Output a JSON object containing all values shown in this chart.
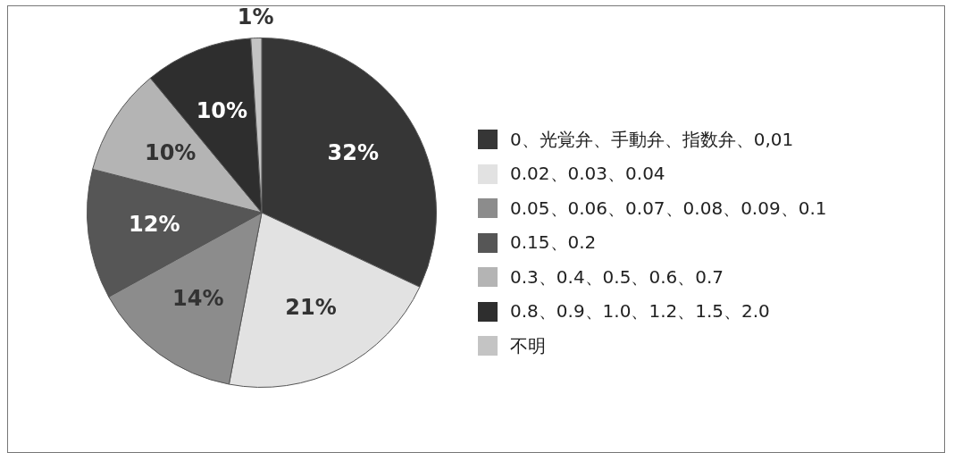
{
  "chart_data": {
    "type": "pie",
    "categories": [
      "0、光覚弁、手動弁、指数弁、0,01",
      "0.02、0.03、0.04",
      "0.05、0.06、0.07、0.08、0.09、0.1",
      "0.15、0.2",
      "0.3、0.4、0.5、0.6、0.7",
      "0.8、0.9、1.0、1.2、1.5、2.0",
      "不明"
    ],
    "values": [
      32,
      21,
      14,
      12,
      10,
      10,
      1
    ],
    "value_labels": [
      "32%",
      "21%",
      "14%",
      "12%",
      "10%",
      "10%",
      "1%"
    ],
    "colors": [
      "#363636",
      "#e2e2e2",
      "#8c8c8c",
      "#565656",
      "#b4b4b4",
      "#2e2e2e",
      "#c4c4c4"
    ],
    "legend": "right"
  }
}
